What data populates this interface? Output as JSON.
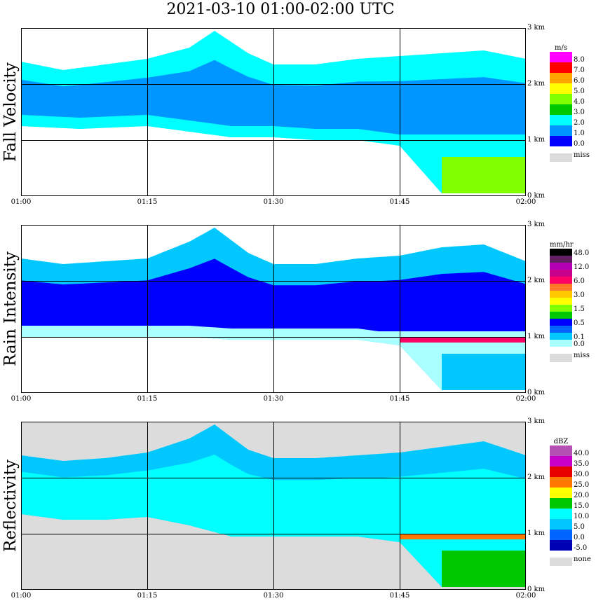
{
  "title": "2021-03-10   01:00-02:00 UTC",
  "time_ticks": [
    "01:00",
    "01:15",
    "01:30",
    "01:45",
    "02:00"
  ],
  "height_ticks": [
    "0 km",
    "1 km",
    "2 km",
    "3 km"
  ],
  "colors": {
    "missing": "#dcdcdc",
    "reflectivity_background": "#dcdcdc",
    "grid": "#000000"
  },
  "chart_data": [
    {
      "type": "heatmap",
      "ylabel": "Fall Velocity",
      "xlabel": "",
      "x_range": [
        "01:00",
        "02:00"
      ],
      "ylim": [
        0,
        3
      ],
      "grid": true,
      "legend_position": "right",
      "legend_unit": "m/s",
      "legend_levels": [
        "8.0",
        "7.0",
        "6.0",
        "5.0",
        "4.0",
        "3.0",
        "2.0",
        "1.0",
        "0.0"
      ],
      "legend_colors": [
        "#ff00ff",
        "#ff0000",
        "#ffa500",
        "#ffff00",
        "#7fff00",
        "#00c800",
        "#00ffff",
        "#0096ff",
        "#0000ff"
      ],
      "legend_missing_label": "miss",
      "background": "#ffffff",
      "cloud_base_km": [
        [
          "01:00",
          1.25
        ],
        [
          "01:07",
          1.2
        ],
        [
          "01:15",
          1.25
        ],
        [
          "01:20",
          1.15
        ],
        [
          "01:25",
          1.05
        ],
        [
          "01:30",
          1.05
        ],
        [
          "01:35",
          1.0
        ],
        [
          "01:40",
          1.0
        ],
        [
          "01:45",
          0.9
        ],
        [
          "01:50",
          0.05
        ],
        [
          "02:00",
          0.05
        ]
      ],
      "cloud_top_km": [
        [
          "01:00",
          2.4
        ],
        [
          "01:05",
          2.25
        ],
        [
          "01:10",
          2.35
        ],
        [
          "01:15",
          2.45
        ],
        [
          "01:20",
          2.65
        ],
        [
          "01:23",
          2.95
        ],
        [
          "01:27",
          2.55
        ],
        [
          "01:30",
          2.35
        ],
        [
          "01:35",
          2.35
        ],
        [
          "01:40",
          2.45
        ],
        [
          "01:45",
          2.5
        ],
        [
          "01:50",
          2.55
        ],
        [
          "01:55",
          2.6
        ],
        [
          "02:00",
          2.45
        ]
      ],
      "core_value": "1.0",
      "upper_value": "2.0",
      "lower_value": "2.0",
      "rain_shaft_value": "4.0",
      "bright_band": null
    },
    {
      "type": "heatmap",
      "ylabel": "Rain Intensity",
      "xlabel": "",
      "x_range": [
        "01:00",
        "02:00"
      ],
      "ylim": [
        0,
        3
      ],
      "grid": true,
      "legend_position": "right",
      "legend_unit": "mm/hr",
      "legend_levels": [
        "48.0",
        "",
        "12.0",
        "",
        "6.0",
        "",
        "3.0",
        "",
        "1.5",
        "",
        "0.5",
        "",
        "0.1",
        "0.0"
      ],
      "legend_colors": [
        "#000000",
        "#641e64",
        "#b400b4",
        "#c8008c",
        "#ff0064",
        "#ff7828",
        "#ffc800",
        "#ffff00",
        "#7fff00",
        "#00c800",
        "#0000ff",
        "#0064ff",
        "#00c8ff",
        "#aaffff"
      ],
      "legend_missing_label": "miss",
      "background": "#ffffff",
      "cloud_base_km": [
        [
          "01:00",
          1.0
        ],
        [
          "01:15",
          1.0
        ],
        [
          "01:20",
          1.0
        ],
        [
          "01:25",
          0.95
        ],
        [
          "01:30",
          0.95
        ],
        [
          "01:40",
          0.95
        ],
        [
          "01:45",
          0.85
        ],
        [
          "01:50",
          0.05
        ],
        [
          "02:00",
          0.05
        ]
      ],
      "cloud_top_km": [
        [
          "01:00",
          2.4
        ],
        [
          "01:05",
          2.3
        ],
        [
          "01:10",
          2.35
        ],
        [
          "01:15",
          2.4
        ],
        [
          "01:20",
          2.7
        ],
        [
          "01:23",
          2.95
        ],
        [
          "01:27",
          2.5
        ],
        [
          "01:30",
          2.3
        ],
        [
          "01:35",
          2.3
        ],
        [
          "01:40",
          2.4
        ],
        [
          "01:45",
          2.45
        ],
        [
          "01:50",
          2.6
        ],
        [
          "01:55",
          2.65
        ],
        [
          "02:00",
          2.35
        ]
      ],
      "core_value": "0.5",
      "upper_value": "0.1",
      "lower_value": "0.0",
      "rain_shaft_value": "0.1",
      "bright_band": {
        "height_km": 0.95,
        "value": "6.0"
      }
    },
    {
      "type": "heatmap",
      "ylabel": "Reflectivity",
      "xlabel": "",
      "x_range": [
        "01:00",
        "02:00"
      ],
      "ylim": [
        0,
        3
      ],
      "grid": true,
      "legend_position": "right",
      "legend_unit": "dBZ",
      "legend_levels": [
        "40.0",
        "35.0",
        "30.0",
        "25.0",
        "20.0",
        "15.0",
        "10.0",
        "5.0",
        "0.0",
        "-5.0"
      ],
      "legend_colors": [
        "#b450b4",
        "#c800c8",
        "#e60000",
        "#ff7800",
        "#ffff00",
        "#00c800",
        "#00ffff",
        "#00c8ff",
        "#0064ff",
        "#0000b4"
      ],
      "legend_missing_label": "none",
      "background": "#dcdcdc",
      "cloud_base_km": [
        [
          "01:00",
          1.35
        ],
        [
          "01:05",
          1.25
        ],
        [
          "01:10",
          1.25
        ],
        [
          "01:15",
          1.3
        ],
        [
          "01:20",
          1.15
        ],
        [
          "01:25",
          0.95
        ],
        [
          "01:30",
          0.95
        ],
        [
          "01:35",
          0.95
        ],
        [
          "01:40",
          0.95
        ],
        [
          "01:45",
          0.85
        ],
        [
          "01:50",
          0.05
        ],
        [
          "02:00",
          0.05
        ]
      ],
      "cloud_top_km": [
        [
          "01:00",
          2.4
        ],
        [
          "01:05",
          2.3
        ],
        [
          "01:10",
          2.35
        ],
        [
          "01:15",
          2.45
        ],
        [
          "01:20",
          2.7
        ],
        [
          "01:23",
          2.95
        ],
        [
          "01:27",
          2.5
        ],
        [
          "01:30",
          2.35
        ],
        [
          "01:35",
          2.35
        ],
        [
          "01:40",
          2.4
        ],
        [
          "01:45",
          2.45
        ],
        [
          "01:50",
          2.55
        ],
        [
          "01:55",
          2.65
        ],
        [
          "02:00",
          2.4
        ]
      ],
      "core_value": "10.0",
      "upper_value": "5.0",
      "lower_value": "10.0",
      "rain_shaft_value": "15.0",
      "bright_band": {
        "height_km": 0.95,
        "value": "25.0"
      }
    }
  ]
}
